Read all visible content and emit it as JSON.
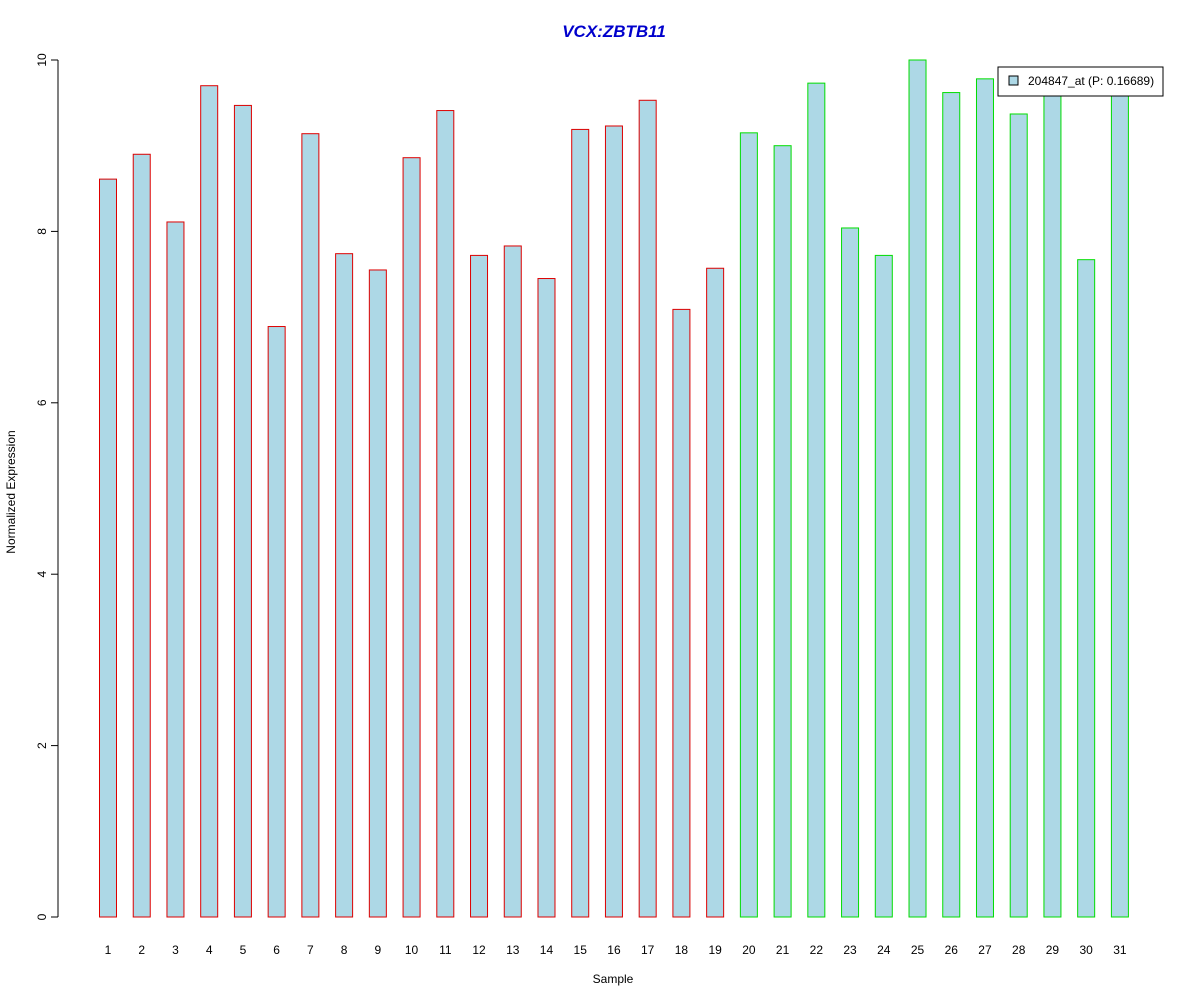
{
  "chart_data": {
    "type": "bar",
    "title": "VCX:ZBTB11",
    "xlabel": "Sample",
    "ylabel": "Normalized Expression",
    "ylim": [
      0,
      10
    ],
    "yticks": [
      0,
      2,
      4,
      6,
      8,
      10
    ],
    "categories": [
      "1",
      "2",
      "3",
      "4",
      "5",
      "6",
      "7",
      "8",
      "9",
      "10",
      "11",
      "12",
      "13",
      "14",
      "15",
      "16",
      "17",
      "18",
      "19",
      "20",
      "21",
      "22",
      "23",
      "24",
      "25",
      "26",
      "27",
      "28",
      "29",
      "30",
      "31"
    ],
    "series": [
      {
        "name": "204847_at (P: 0.16689)",
        "values": [
          8.61,
          8.9,
          8.11,
          9.7,
          9.47,
          6.89,
          9.14,
          7.74,
          7.55,
          8.86,
          9.41,
          7.72,
          7.83,
          7.45,
          9.19,
          9.23,
          9.53,
          7.09,
          7.57,
          9.15,
          9.0,
          9.73,
          8.04,
          7.72,
          10.0,
          9.62,
          9.78,
          9.37,
          9.6,
          7.67,
          9.62
        ]
      }
    ],
    "groups": [
      {
        "from": 1,
        "to": 19,
        "border_color": "#dd0000"
      },
      {
        "from": 20,
        "to": 31,
        "border_color": "#00dd00"
      }
    ],
    "bar_fill": "#add8e6",
    "title_color": "#0000cc",
    "legend_position": "top-right",
    "grid": false
  }
}
